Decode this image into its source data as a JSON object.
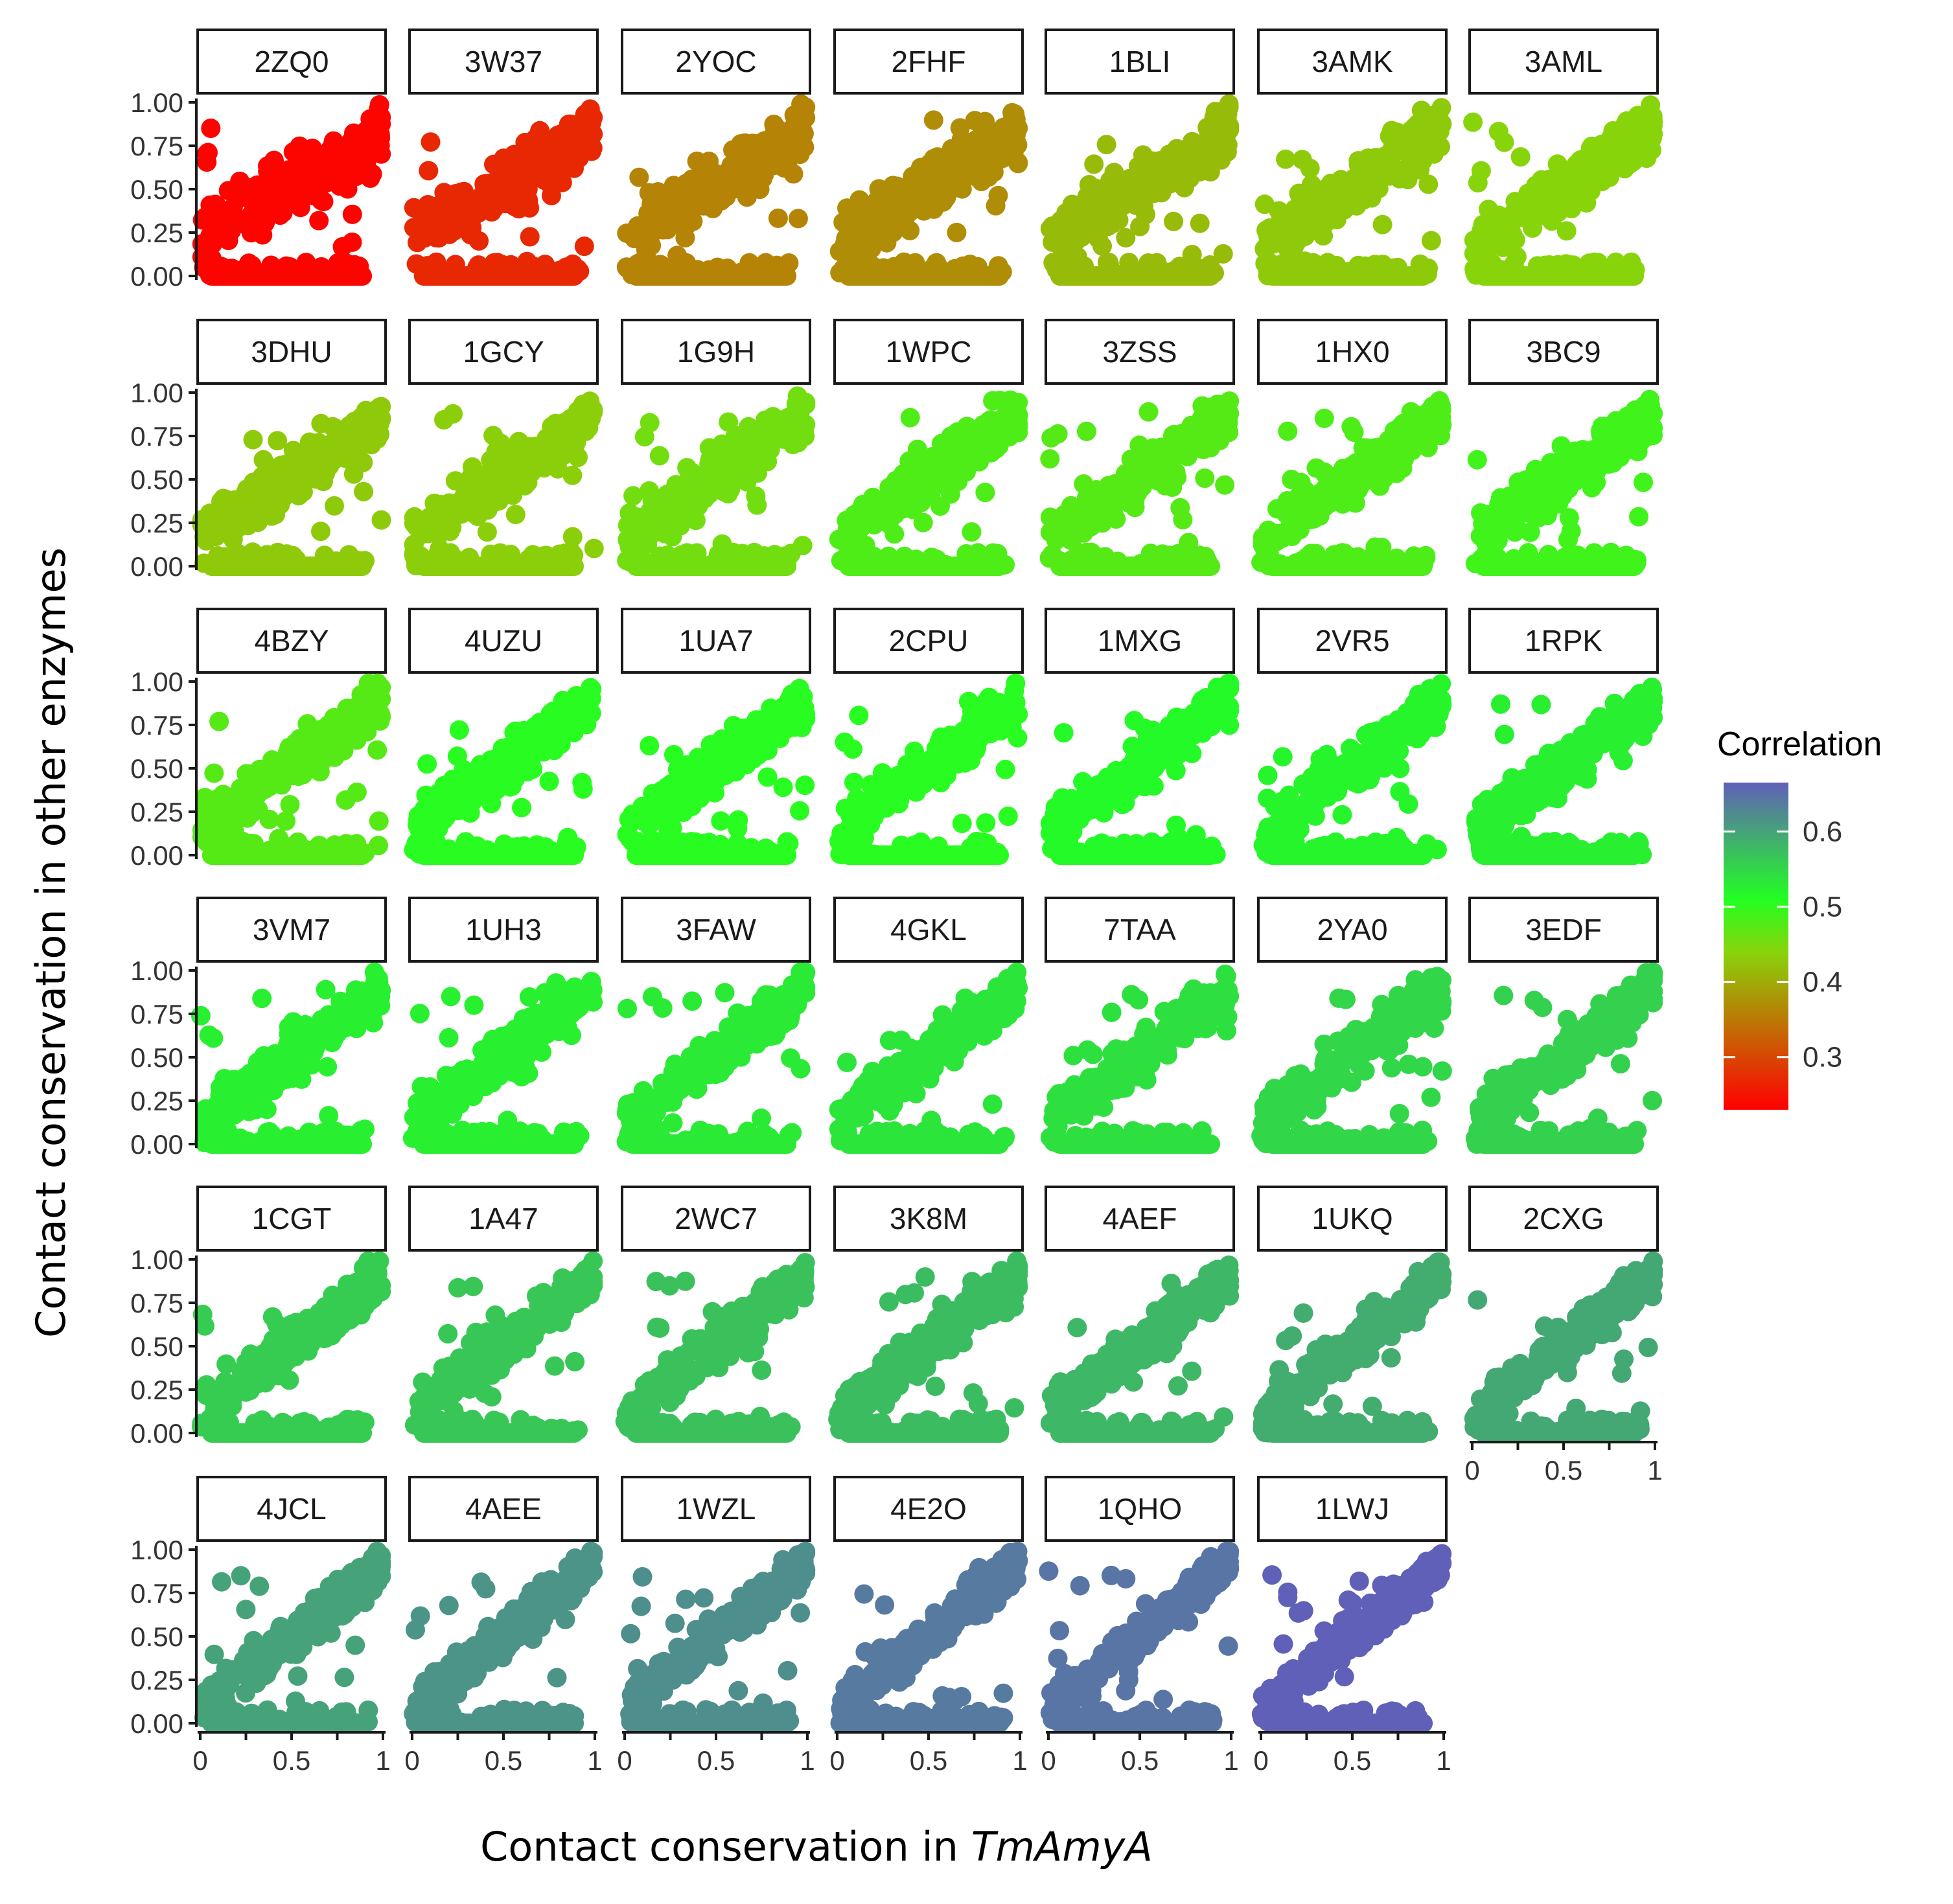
{
  "chart_data": {
    "type": "scatter",
    "xlabel": "Contact conservation in ",
    "xlabel_italic": "TmAmyA",
    "ylabel": "Contact conservation in other enzymes",
    "xlim": [
      0,
      1
    ],
    "ylim": [
      0,
      1
    ],
    "x_ticks": [
      0,
      0.5,
      1
    ],
    "x_tick_labels": [
      "0",
      "0.5",
      "1"
    ],
    "y_ticks": [
      0,
      0.25,
      0.5,
      0.75,
      1
    ],
    "y_tick_labels": [
      "0.00",
      "0.25",
      "0.50",
      "0.75",
      "1.00"
    ],
    "ncols": 7,
    "legend": {
      "title": "Correlation",
      "position": "right",
      "range": [
        0.23,
        0.665
      ],
      "ticks": [
        0.3,
        0.4,
        0.5,
        0.6
      ],
      "tick_labels": [
        "0.3",
        "0.4",
        "0.5",
        "0.6"
      ],
      "gradient": [
        {
          "value": 0.23,
          "color": "#ff0000"
        },
        {
          "value": 0.44,
          "color": "#88d40a"
        },
        {
          "value": 0.51,
          "color": "#22ff22"
        },
        {
          "value": 0.665,
          "color": "#6060b8"
        }
      ]
    },
    "panels": [
      {
        "label": "2ZQ0",
        "correlation": 0.235
      },
      {
        "label": "3W37",
        "correlation": 0.27
      },
      {
        "label": "2YOC",
        "correlation": 0.36
      },
      {
        "label": "2FHF",
        "correlation": 0.37
      },
      {
        "label": "1BLI",
        "correlation": 0.415
      },
      {
        "label": "3AMK",
        "correlation": 0.43
      },
      {
        "label": "3AML",
        "correlation": 0.44
      },
      {
        "label": "3DHU",
        "correlation": 0.43
      },
      {
        "label": "1GCY",
        "correlation": 0.435
      },
      {
        "label": "1G9H",
        "correlation": 0.455
      },
      {
        "label": "1WPC",
        "correlation": 0.48
      },
      {
        "label": "3ZSS",
        "correlation": 0.475
      },
      {
        "label": "1HX0",
        "correlation": 0.48
      },
      {
        "label": "3BC9",
        "correlation": 0.49
      },
      {
        "label": "4BZY",
        "correlation": 0.475
      },
      {
        "label": "4UZU",
        "correlation": 0.505
      },
      {
        "label": "1UA7",
        "correlation": 0.505
      },
      {
        "label": "2CPU",
        "correlation": 0.505
      },
      {
        "label": "1MXG",
        "correlation": 0.515
      },
      {
        "label": "2VR5",
        "correlation": 0.52
      },
      {
        "label": "1RPK",
        "correlation": 0.525
      },
      {
        "label": "3VM7",
        "correlation": 0.525
      },
      {
        "label": "1UH3",
        "correlation": 0.525
      },
      {
        "label": "3FAW",
        "correlation": 0.53
      },
      {
        "label": "4GKL",
        "correlation": 0.535
      },
      {
        "label": "7TAA",
        "correlation": 0.54
      },
      {
        "label": "2YA0",
        "correlation": 0.55
      },
      {
        "label": "3EDF",
        "correlation": 0.555
      },
      {
        "label": "1CGT",
        "correlation": 0.56
      },
      {
        "label": "1A47",
        "correlation": 0.565
      },
      {
        "label": "2WC7",
        "correlation": 0.57
      },
      {
        "label": "3K8M",
        "correlation": 0.575
      },
      {
        "label": "4AEF",
        "correlation": 0.58
      },
      {
        "label": "1UKQ",
        "correlation": 0.59
      },
      {
        "label": "2CXG",
        "correlation": 0.595
      },
      {
        "label": "4JCL",
        "correlation": 0.6
      },
      {
        "label": "4AEE",
        "correlation": 0.615
      },
      {
        "label": "1WZL",
        "correlation": 0.62
      },
      {
        "label": "4E2O",
        "correlation": 0.64
      },
      {
        "label": "1QHO",
        "correlation": 0.645
      },
      {
        "label": "1LWJ",
        "correlation": 0.665
      }
    ]
  }
}
